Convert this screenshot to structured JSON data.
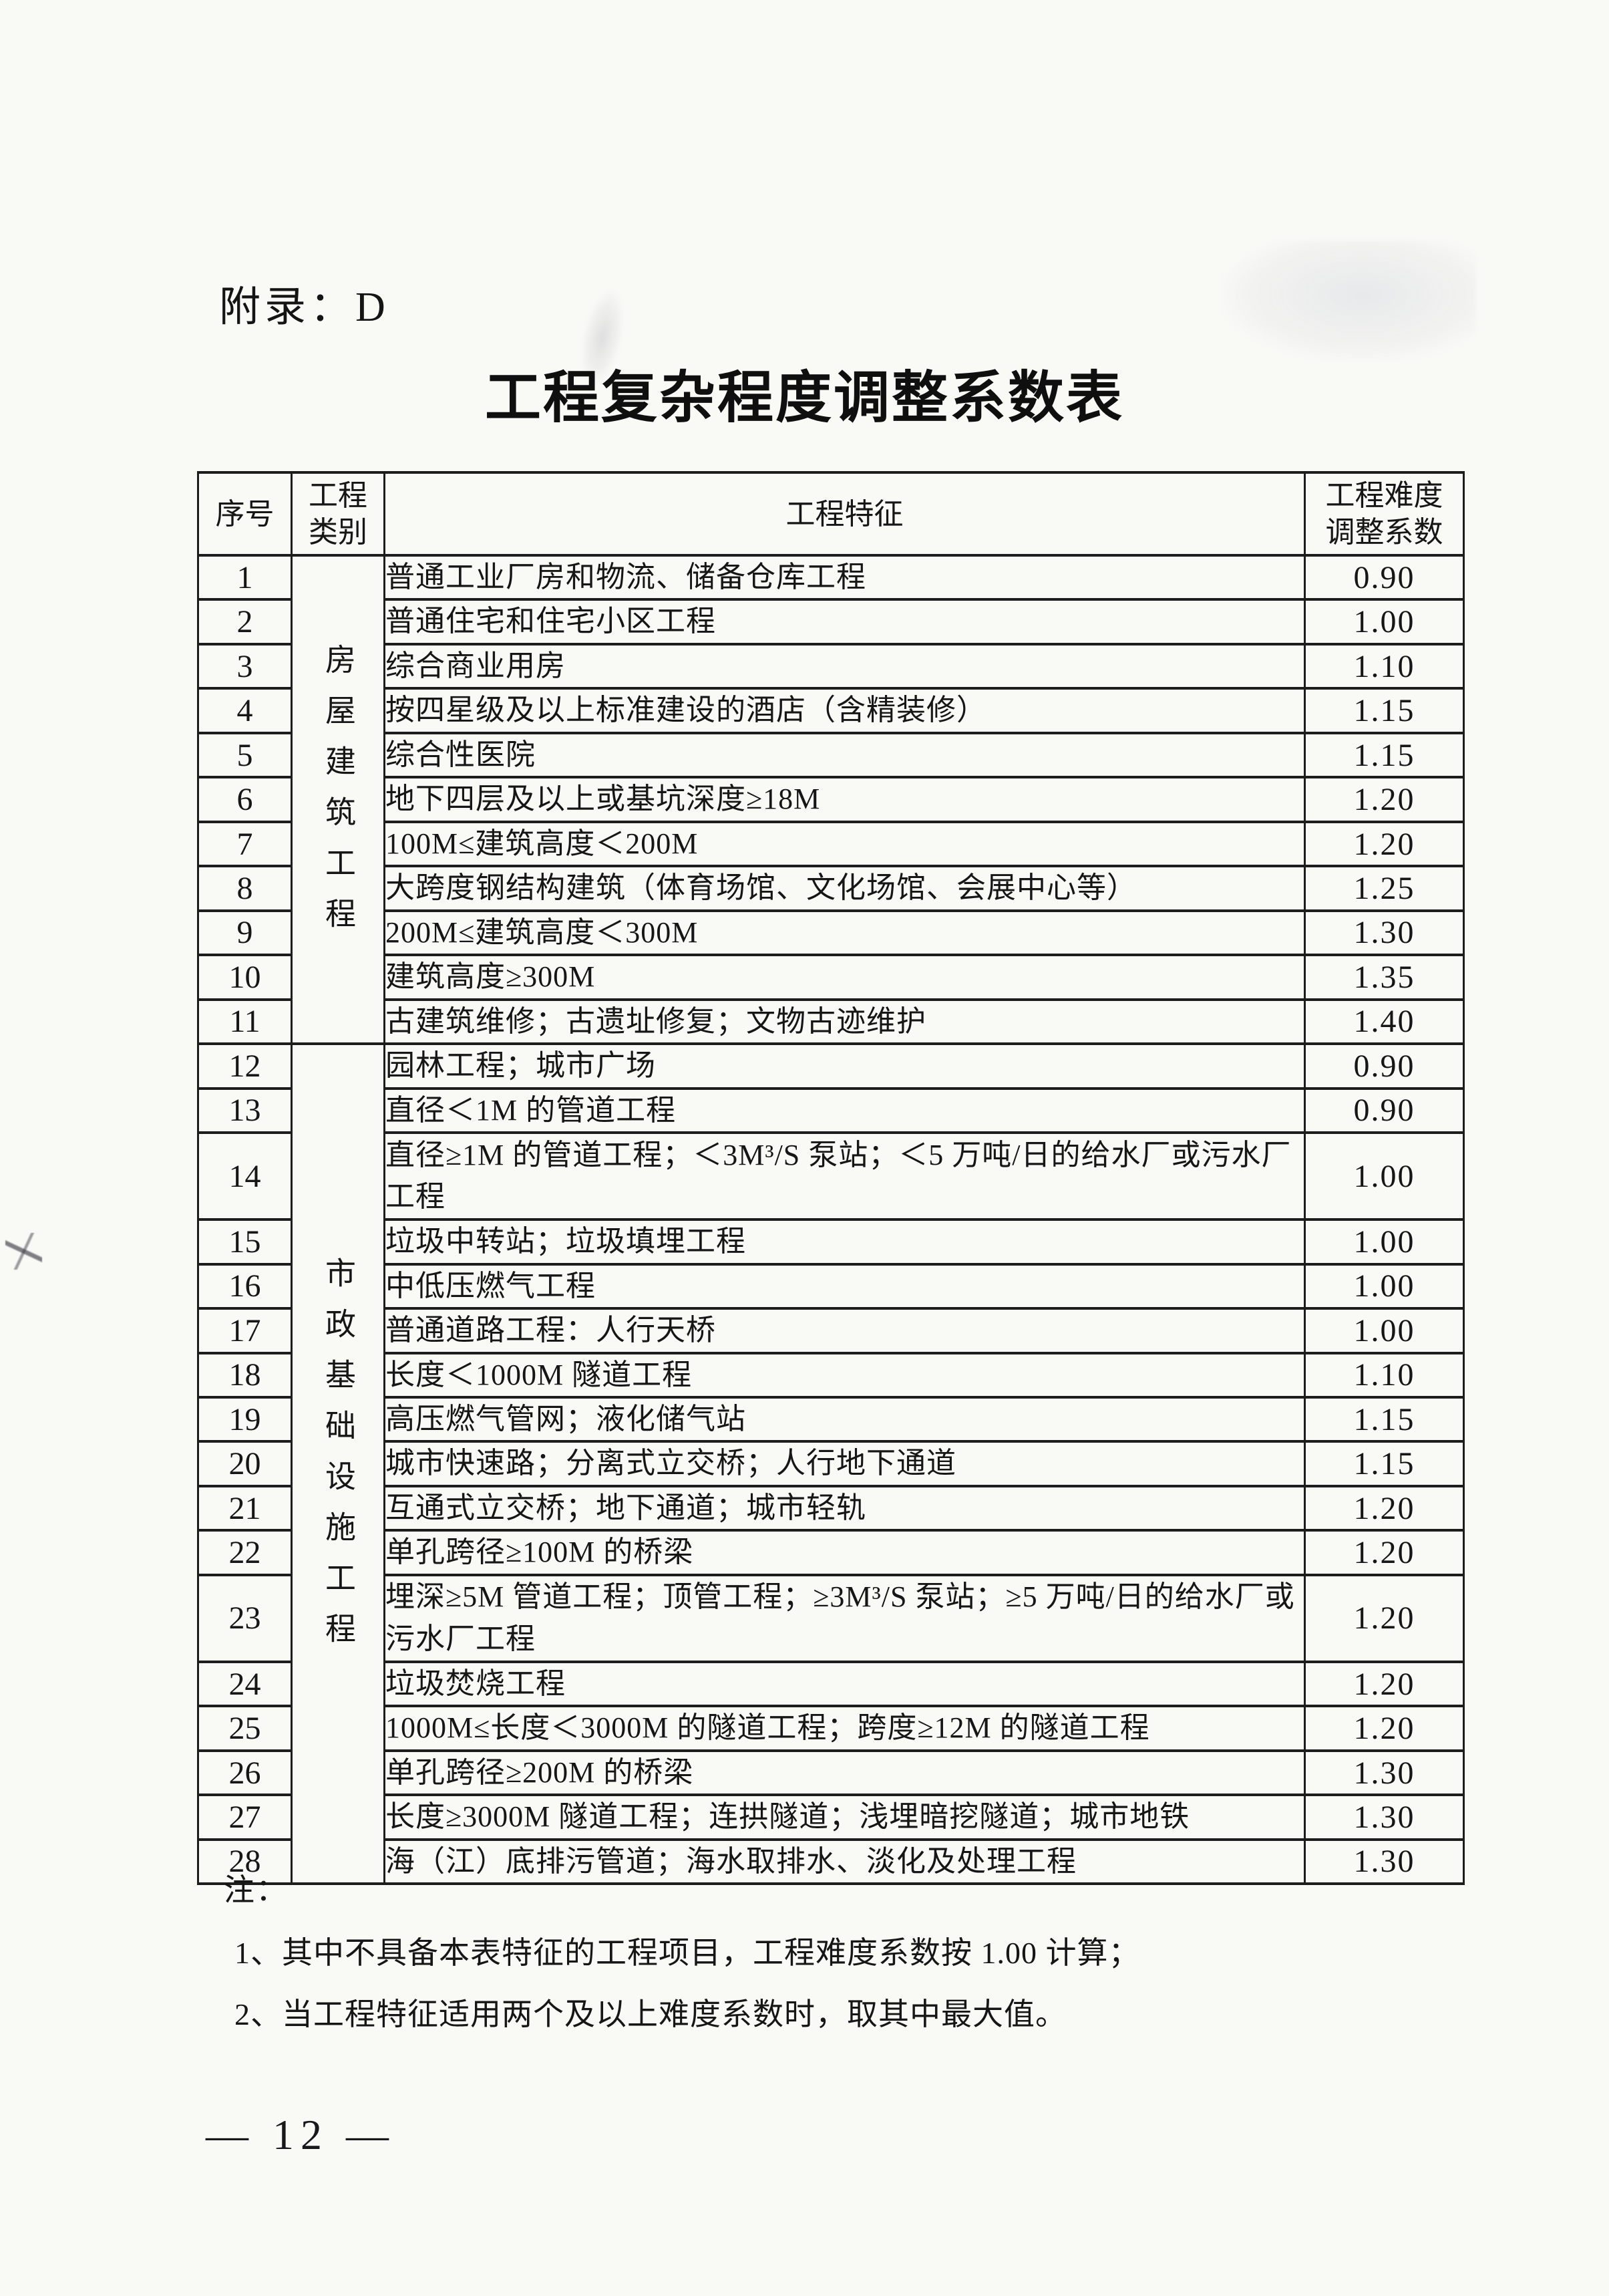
{
  "page": {
    "appendix_label": "附录：D",
    "title": "工程复杂程度调整系数表",
    "page_number": "— 12 —"
  },
  "table": {
    "headers": {
      "index": "序号",
      "category": "工程\n类别",
      "feature": "工程特征",
      "coefficient": "工程难度\n调整系数"
    },
    "categories": [
      {
        "label": "房屋建筑工程"
      },
      {
        "label": "市政基础设施工程"
      }
    ],
    "rows": [
      {
        "no": "1",
        "feature": "普通工业厂房和物流、储备仓库工程",
        "coef": "0.90"
      },
      {
        "no": "2",
        "feature": "普通住宅和住宅小区工程",
        "coef": "1.00"
      },
      {
        "no": "3",
        "feature": "综合商业用房",
        "coef": "1.10"
      },
      {
        "no": "4",
        "feature": "按四星级及以上标准建设的酒店（含精装修）",
        "coef": "1.15"
      },
      {
        "no": "5",
        "feature": "综合性医院",
        "coef": "1.15"
      },
      {
        "no": "6",
        "feature": "地下四层及以上或基坑深度≥18M",
        "coef": "1.20"
      },
      {
        "no": "7",
        "feature": "100M≤建筑高度＜200M",
        "coef": "1.20"
      },
      {
        "no": "8",
        "feature": "大跨度钢结构建筑（体育场馆、文化场馆、会展中心等）",
        "coef": "1.25"
      },
      {
        "no": "9",
        "feature": "200M≤建筑高度＜300M",
        "coef": "1.30"
      },
      {
        "no": "10",
        "feature": "建筑高度≥300M",
        "coef": "1.35"
      },
      {
        "no": "11",
        "feature": "古建筑维修；古遗址修复；文物古迹维护",
        "coef": "1.40"
      },
      {
        "no": "12",
        "feature": "园林工程；城市广场",
        "coef": "0.90"
      },
      {
        "no": "13",
        "feature": "直径＜1M 的管道工程",
        "coef": "0.90"
      },
      {
        "no": "14",
        "feature": "直径≥1M 的管道工程；＜3M³/S 泵站；＜5 万吨/日的给水厂或污水厂工程",
        "coef": "1.00"
      },
      {
        "no": "15",
        "feature": "垃圾中转站；垃圾填埋工程",
        "coef": "1.00"
      },
      {
        "no": "16",
        "feature": "中低压燃气工程",
        "coef": "1.00"
      },
      {
        "no": "17",
        "feature": "普通道路工程：人行天桥",
        "coef": "1.00"
      },
      {
        "no": "18",
        "feature": "长度＜1000M 隧道工程",
        "coef": "1.10"
      },
      {
        "no": "19",
        "feature": "高压燃气管网；液化储气站",
        "coef": "1.15"
      },
      {
        "no": "20",
        "feature": "城市快速路；分离式立交桥；人行地下通道",
        "coef": "1.15"
      },
      {
        "no": "21",
        "feature": "互通式立交桥；地下通道；城市轻轨",
        "coef": "1.20"
      },
      {
        "no": "22",
        "feature": "单孔跨径≥100M 的桥梁",
        "coef": "1.20"
      },
      {
        "no": "23",
        "feature": "埋深≥5M 管道工程；顶管工程；≥3M³/S 泵站；≥5 万吨/日的给水厂或污水厂工程",
        "coef": "1.20"
      },
      {
        "no": "24",
        "feature": "垃圾焚烧工程",
        "coef": "1.20"
      },
      {
        "no": "25",
        "feature": "1000M≤长度＜3000M 的隧道工程；跨度≥12M 的隧道工程",
        "coef": "1.20"
      },
      {
        "no": "26",
        "feature": "单孔跨径≥200M 的桥梁",
        "coef": "1.30"
      },
      {
        "no": "27",
        "feature": "长度≥3000M 隧道工程；连拱隧道；浅埋暗挖隧道；城市地铁",
        "coef": "1.30"
      },
      {
        "no": "28",
        "feature": "海（江）底排污管道；海水取排水、淡化及处理工程",
        "coef": "1.30"
      }
    ]
  },
  "notes": {
    "label": "注：",
    "items": [
      "1、其中不具备本表特征的工程项目，工程难度系数按 1.00 计算；",
      "2、当工程特征适用两个及以上难度系数时，取其中最大值。"
    ]
  }
}
